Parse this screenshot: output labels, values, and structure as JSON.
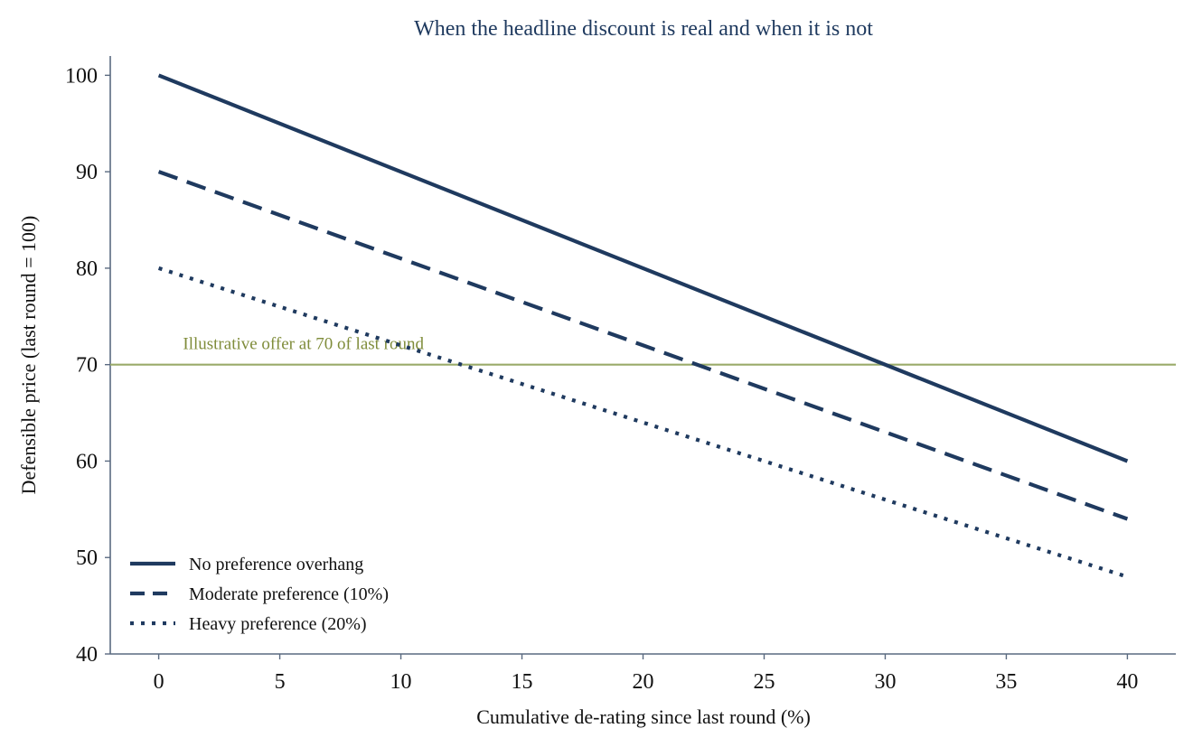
{
  "chart_data": {
    "type": "line",
    "title": "When the headline discount is real and when it is not",
    "xlabel": "Cumulative de-rating since last round (%)",
    "ylabel": "Defensible price (last round = 100)",
    "xlim": [
      -2,
      42
    ],
    "ylim": [
      40,
      102
    ],
    "xticks": [
      0,
      5,
      10,
      15,
      20,
      25,
      30,
      35,
      40
    ],
    "yticks": [
      40,
      50,
      60,
      70,
      80,
      90,
      100
    ],
    "grid": false,
    "legend_position": "bottom-left",
    "x": [
      0,
      40
    ],
    "series": [
      {
        "name": "No preference overhang",
        "values": [
          100,
          60
        ],
        "style": "solid"
      },
      {
        "name": "Moderate preference (10%)",
        "values": [
          90,
          54
        ],
        "style": "dashed"
      },
      {
        "name": "Heavy preference (20%)",
        "values": [
          80,
          48
        ],
        "style": "dotted"
      }
    ],
    "reference_line": {
      "y": 70,
      "label": "Illustrative offer at 70 of last round",
      "label_x": 1
    },
    "colors": {
      "series": "#1f3a5f",
      "reference": "#9aab6a",
      "reference_text": "#7f8c3a",
      "title": "#1f3a5f",
      "axis": "#5a6a80"
    }
  }
}
